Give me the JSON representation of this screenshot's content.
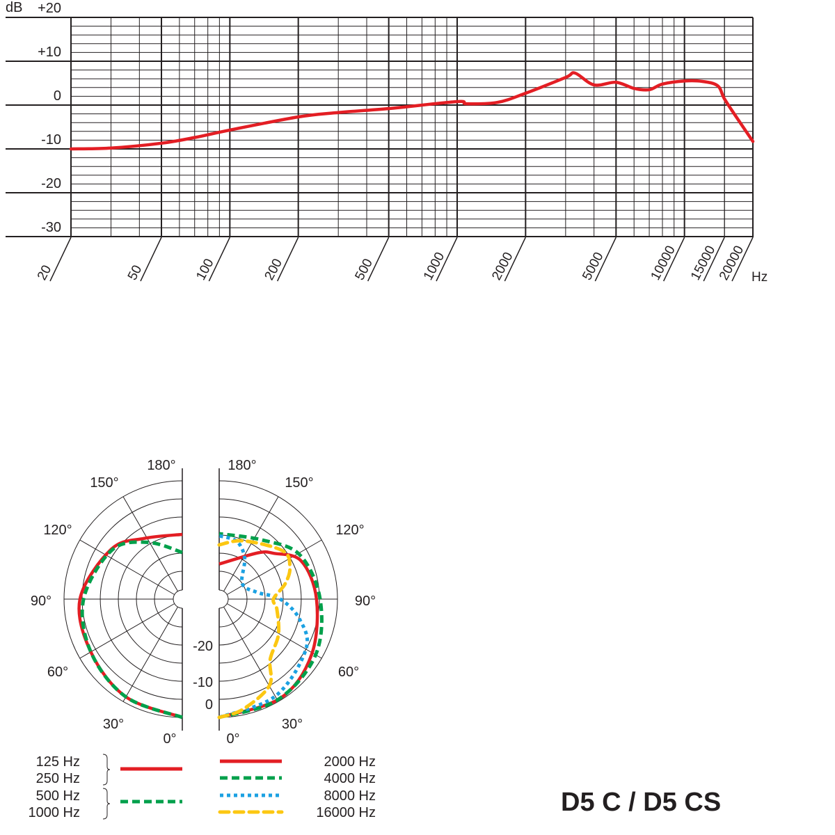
{
  "title": "D5 C / D5 CS",
  "colors": {
    "red": "#e31e24",
    "green": "#00a04b",
    "blue": "#1ba1e2",
    "yellow": "#fcc712",
    "grid": "#231f20"
  },
  "chart_data": [
    {
      "type": "line",
      "ylabel": "dB",
      "xlabel": "Hz",
      "xscale": "log",
      "xlim": [
        20,
        20000
      ],
      "ylim": [
        -30,
        20
      ],
      "grid": true,
      "y_ticks": [
        "+20",
        "+10",
        "0",
        "-10",
        "-20",
        "-30"
      ],
      "y_tick_values": [
        20,
        10,
        0,
        -10,
        -20,
        -30
      ],
      "x_ticks": [
        "20",
        "50",
        "100",
        "200",
        "500",
        "1000",
        "2000",
        "5000",
        "10000",
        "15000",
        "20000"
      ],
      "x_tick_values": [
        20,
        50,
        100,
        200,
        500,
        1000,
        2000,
        5000,
        10000,
        15000,
        20000
      ],
      "series": [
        {
          "color": "#e31e24",
          "x": [
            20,
            30,
            50,
            70,
            100,
            200,
            300,
            500,
            1000,
            1100,
            1500,
            2000,
            3000,
            3300,
            4000,
            5000,
            6000,
            7000,
            8000,
            10000,
            12000,
            14000,
            15000,
            17000,
            20000
          ],
          "y": [
            -10,
            -9.8,
            -8.7,
            -7.4,
            -5.7,
            -2.7,
            -1.7,
            -0.8,
            0.8,
            0.3,
            0.6,
            2.7,
            6.3,
            7.3,
            4.6,
            5.2,
            3.8,
            3.5,
            4.8,
            5.5,
            5.4,
            4.4,
            1.4,
            -2.9,
            -8.3
          ]
        }
      ]
    },
    {
      "type": "polar",
      "angle_ticks_left": [
        "180°",
        "150°",
        "120°",
        "90°",
        "60°",
        "30°",
        "0°"
      ],
      "angle_ticks_right": [
        "180°",
        "150°",
        "120°",
        "90°",
        "60°",
        "30°",
        "0°"
      ],
      "radial_ticks": [
        "-20",
        "-10",
        "0"
      ],
      "radial_tick_values": [
        -20,
        -10,
        0
      ],
      "radial_range_db": [
        -30,
        0
      ],
      "left": [
        {
          "labels": [
            "125 Hz",
            "250 Hz"
          ],
          "style": "solid",
          "color": "#e31e24",
          "angles": [
            0,
            30,
            60,
            90,
            125,
            148,
            180
          ],
          "db": [
            0,
            -1.5,
            -3.5,
            -4.4,
            -8.7,
            -12.9,
            -14.8
          ]
        },
        {
          "labels": [
            "500 Hz",
            "1000 Hz"
          ],
          "style": "dashed",
          "color": "#00a04b",
          "angles": [
            0,
            30,
            60,
            90,
            125,
            149,
            180
          ],
          "db": [
            0,
            -1.5,
            -3.5,
            -5.4,
            -9.0,
            -14.4,
            -19.8
          ]
        }
      ],
      "right": [
        {
          "label": "2000 Hz",
          "style": "solid",
          "color": "#e31e24",
          "angles": [
            0,
            32,
            59,
            90,
            115,
            130,
            140,
            180
          ],
          "db": [
            0,
            -0.5,
            -2.9,
            -5.8,
            -7.7,
            -13,
            -16,
            -23
          ]
        },
        {
          "label": "4000 Hz",
          "style": "dashed",
          "color": "#00a04b",
          "angles": [
            0,
            30,
            60,
            90,
            119,
            144,
            180
          ],
          "db": [
            0,
            -0.5,
            -1.9,
            -4.8,
            -7.3,
            -12.5,
            -14.6
          ]
        },
        {
          "label": "8000 Hz",
          "style": "dotted",
          "color": "#1ba1e2",
          "angles": [
            0,
            30,
            60,
            76,
            90,
            100,
            124,
            148,
            163,
            180
          ],
          "db": [
            0,
            -1.7,
            -5,
            -9.8,
            -15.8,
            -22,
            -25,
            -19.4,
            -16,
            -15.2
          ]
        },
        {
          "label": "16000 Hz",
          "style": "long-dashed",
          "color": "#fcc712",
          "angles": [
            0,
            12,
            30,
            40,
            59,
            80,
            90,
            103,
            114,
            127,
            157,
            180
          ],
          "db": [
            0,
            -1.5,
            -5,
            -10.8,
            -13.6,
            -16.5,
            -17.7,
            -14,
            -11.3,
            -10.6,
            -15.2,
            -17.7
          ]
        }
      ]
    }
  ]
}
